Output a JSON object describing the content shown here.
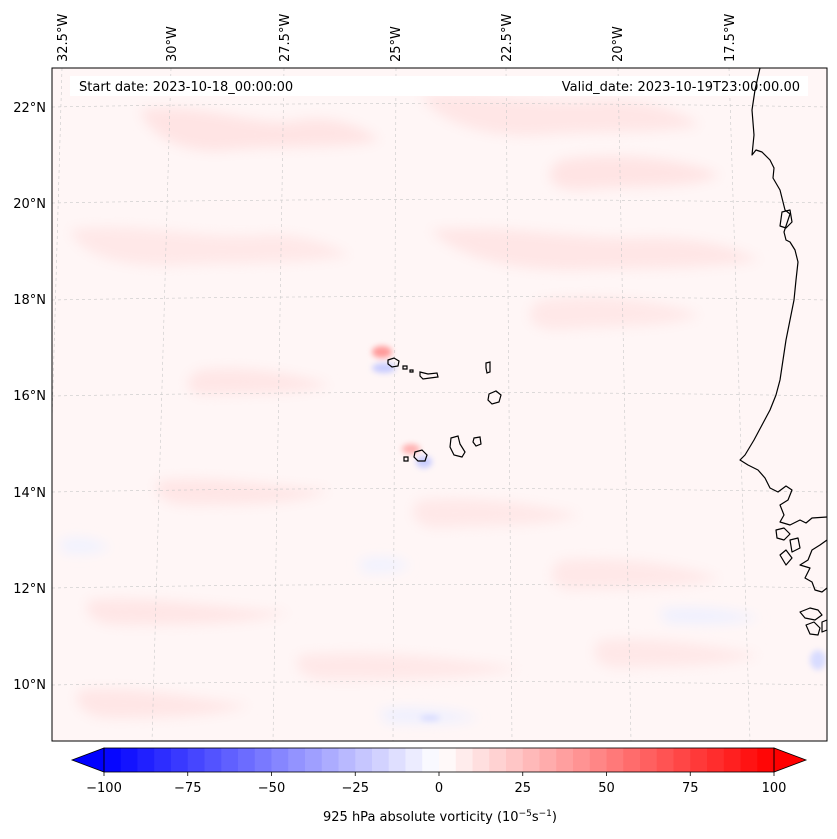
{
  "header": {
    "start_date": "Start date: 2023-10-18_00:00:00",
    "valid_date": "Valid_date: 2023-10-19T23:00:00.00"
  },
  "map": {
    "longitude_labels": [
      "32.5°W",
      "30°W",
      "27.5°W",
      "25°W",
      "22.5°W",
      "20°W",
      "17.5°W"
    ],
    "latitude_labels": [
      "22°N",
      "20°N",
      "18°N",
      "16°N",
      "14°N",
      "12°N",
      "10°N"
    ],
    "gridlines": true,
    "features": [
      "Cape Verde islands",
      "West African coastline"
    ]
  },
  "colorbar": {
    "colormap": "bwr",
    "min_color": "#0000ff",
    "mid_color": "#ffffff",
    "max_color": "#ff0000",
    "ticks": [
      "−100",
      "−75",
      "−50",
      "−25",
      "0",
      "25",
      "50",
      "75",
      "100"
    ],
    "tick_values": [
      -100,
      -75,
      -50,
      -25,
      0,
      25,
      50,
      75,
      100
    ],
    "range": [
      -100,
      100
    ],
    "extend": "both",
    "label_main": "925 hPa absolute vorticity (10",
    "label_exp1": "−5",
    "label_mid": "s",
    "label_exp2": "−1",
    "label_end": ")"
  }
}
